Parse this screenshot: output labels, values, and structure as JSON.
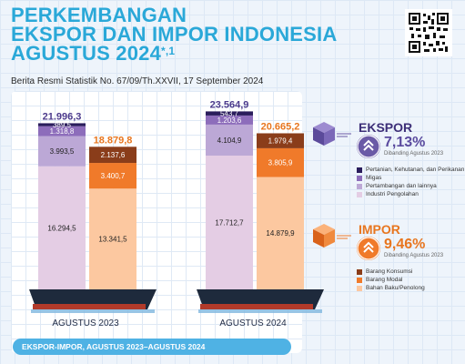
{
  "header": {
    "title_lines": [
      "PERKEMBANGAN",
      "EKSPOR DAN IMPOR INDONESIA",
      "AGUSTUS 2024"
    ],
    "title_mark": "*,1",
    "subtitle": "Berita Resmi Statistik No. 67/09/Th.XXVII, 17 September 2024"
  },
  "footer": {
    "label": "EKSPOR-IMPOR, AGUSTUS 2023–AGUSTUS 2024"
  },
  "colors": {
    "title": "#2aa8d8",
    "ekspor_accent": "#6a5aa6",
    "impor_accent": "#f07a2a",
    "ekspor_total_text": "#4b3a8c",
    "impor_total_text": "#e8761f"
  },
  "ekspor": {
    "label": "EKSPOR",
    "change": "7,13%",
    "compare": "Dibanding Agustus 2023",
    "icon": "up-chevron-icon",
    "legend": [
      "Pertanian, Kehutanan, dan Perikanan",
      "Migas",
      "Pertambangan dan lainnya",
      "Industri Pengolahan"
    ]
  },
  "impor": {
    "label": "IMPOR",
    "change": "9,46%",
    "compare": "Dibanding Agustus 2023",
    "icon": "up-chevron-icon",
    "legend": [
      "Barang Konsumsi",
      "Barang Modal",
      "Bahan Baku/Penolong"
    ]
  },
  "chart_data": {
    "type": "bar",
    "stacked": true,
    "categories": [
      "AGUSTUS 2023",
      "AGUSTUS 2024"
    ],
    "groups": [
      {
        "name": "Ekspor",
        "totals": [
          21996.3,
          23564.9
        ],
        "total_labels": [
          "21.996,3",
          "23.564,9"
        ],
        "series": [
          {
            "name": "Industri Pengolahan",
            "color": "#e4cde4",
            "values": [
              16294.5,
              17712.7
            ],
            "labels": [
              "16.294,5",
              "17.712,7"
            ]
          },
          {
            "name": "Pertambangan dan lainnya",
            "color": "#bca8d6",
            "values": [
              3993.5,
              4104.9
            ],
            "labels": [
              "3.993,5",
              "4.104,9"
            ]
          },
          {
            "name": "Migas",
            "color": "#8d6dbb",
            "values": [
              1318.8,
              1203.6
            ],
            "labels": [
              "1.318,8",
              "1.203,6"
            ]
          },
          {
            "name": "Pertanian, Kehutanan, dan Perikanan",
            "color": "#2a1d5c",
            "values": [
              389.5,
              543.7
            ],
            "labels": [
              "389,5",
              "543,7"
            ]
          }
        ]
      },
      {
        "name": "Impor",
        "totals": [
          18879.8,
          20665.2
        ],
        "total_labels": [
          "18.879,8",
          "20.665,2"
        ],
        "series": [
          {
            "name": "Bahan Baku/Penolong",
            "color": "#fcc8a0",
            "values": [
              13341.5,
              14879.9
            ],
            "labels": [
              "13.341,5",
              "14.879,9"
            ]
          },
          {
            "name": "Barang Modal",
            "color": "#f07a2a",
            "values": [
              3400.7,
              3805.9
            ],
            "labels": [
              "3.400,7",
              "3.805,9"
            ]
          },
          {
            "name": "Barang Konsumsi",
            "color": "#8a3d1a",
            "values": [
              2137.6,
              1979.4
            ],
            "labels": [
              "2.137,6",
              "1.979,4"
            ]
          }
        ]
      }
    ]
  }
}
